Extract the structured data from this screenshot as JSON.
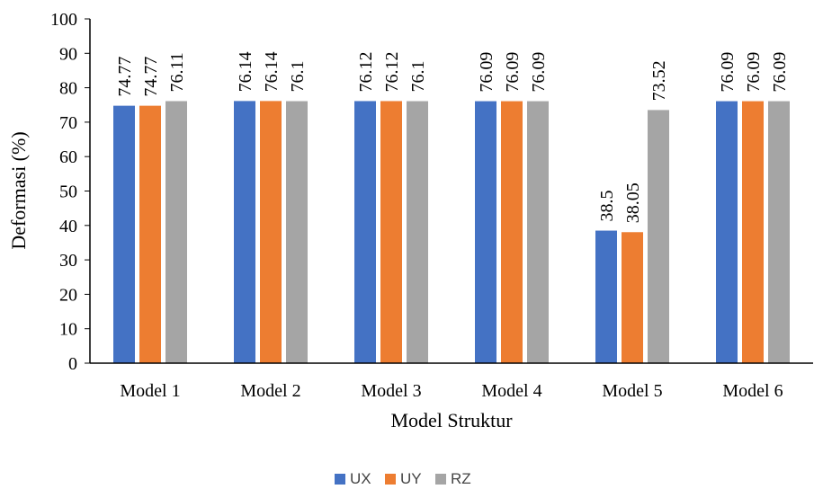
{
  "chart_data": {
    "type": "bar",
    "categories": [
      "Model 1",
      "Model 2",
      "Model 3",
      "Model 4",
      "Model 5",
      "Model 6"
    ],
    "series": [
      {
        "name": "UX",
        "color": "#4472C4",
        "values": [
          74.77,
          76.14,
          76.12,
          76.09,
          38.5,
          76.09
        ]
      },
      {
        "name": "UY",
        "color": "#ED7D31",
        "values": [
          74.77,
          76.14,
          76.12,
          76.09,
          38.05,
          76.09
        ]
      },
      {
        "name": "RZ",
        "color": "#A5A5A5",
        "values": [
          76.11,
          76.1,
          76.1,
          76.09,
          73.52,
          76.09
        ]
      }
    ],
    "data_labels": [
      [
        "74.77",
        "76.14",
        "76.12",
        "76.09",
        "38.5",
        "76.09"
      ],
      [
        "74.77",
        "76.14",
        "76.12",
        "76.09",
        "38.05",
        "76.09"
      ],
      [
        "76.11",
        "76.1",
        "76.1",
        "76.09",
        "73.52",
        "76.09"
      ]
    ],
    "title": "",
    "xlabel": "Model Struktur",
    "ylabel": "Deformasi (%)",
    "ylim": [
      0,
      100
    ],
    "yticks": [
      0,
      10,
      20,
      30,
      40,
      50,
      60,
      70,
      80,
      90,
      100
    ],
    "grid": false,
    "legend_position": "bottom"
  }
}
